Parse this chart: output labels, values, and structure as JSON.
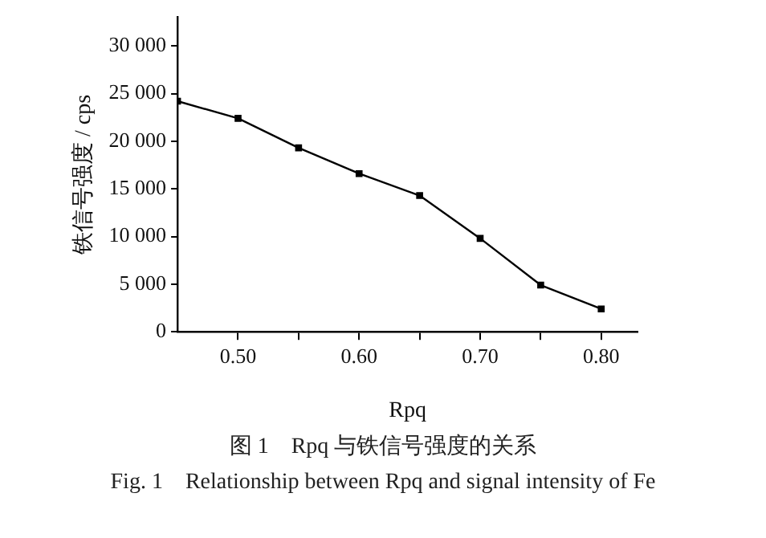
{
  "chart_data": {
    "type": "line",
    "xlabel": "Rpq",
    "ylabel": "铁信号强度 / cps",
    "x": [
      0.45,
      0.5,
      0.55,
      0.6,
      0.65,
      0.7,
      0.75,
      0.8
    ],
    "series": [
      {
        "color": "#000000",
        "values": [
          24200,
          22400,
          19300,
          16600,
          14300,
          9800,
          4900,
          2400
        ]
      }
    ],
    "xlim": [
      0.45,
      0.83
    ],
    "xticks": [
      {
        "value": 0.5,
        "label": "0.50"
      },
      {
        "value": 0.55,
        "label": null
      },
      {
        "value": 0.6,
        "label": "0.60"
      },
      {
        "value": 0.65,
        "label": null
      },
      {
        "value": 0.7,
        "label": "0.70"
      },
      {
        "value": 0.75,
        "label": null
      },
      {
        "value": 0.8,
        "label": "0.80"
      }
    ],
    "ylim": [
      0,
      33000
    ],
    "yticks": [
      0,
      {
        "value": 5000,
        "label": "5 000"
      },
      {
        "value": 10000,
        "label": "10 000"
      },
      {
        "value": 15000,
        "label": "15 000"
      },
      {
        "value": 20000,
        "label": "20 000"
      },
      {
        "value": 25000,
        "label": "25 000"
      },
      {
        "value": 30000,
        "label": "30 000"
      }
    ],
    "grid": false,
    "legend": false,
    "marker": "square",
    "line_style": "solid",
    "annotations": [
      "图 1　Rpq 与铁信号强度的关系",
      "Fig. 1　Relationship between Rpq and signal intensity of Fe"
    ]
  }
}
